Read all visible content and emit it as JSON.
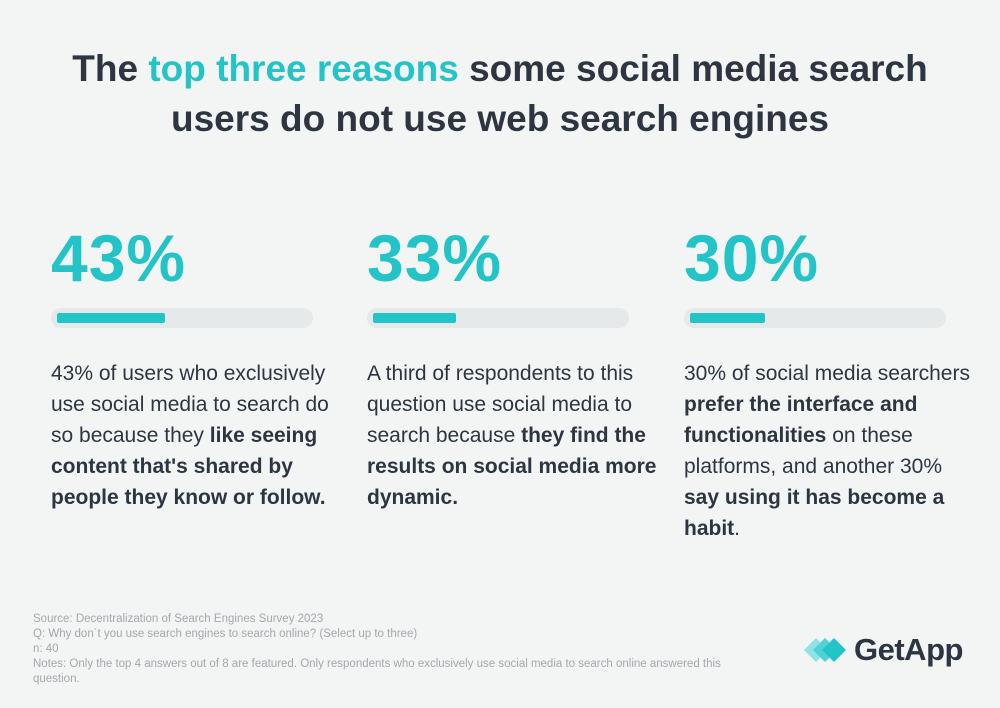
{
  "title": [
    {
      "text": "The ",
      "highlight": false
    },
    {
      "text": "top three reasons",
      "highlight": true
    },
    {
      "text": " some social media search users do not use web search engines",
      "highlight": false
    }
  ],
  "stats": [
    {
      "value": 43,
      "label": "43%",
      "text": [
        {
          "text": "43% of users who exclusively use social media to search do so because they ",
          "bold": false
        },
        {
          "text": "like seeing content that's shared by people they know or follow.",
          "bold": true
        }
      ]
    },
    {
      "value": 33,
      "label": "33%",
      "text": [
        {
          "text": "A third of respondents to this question use social media to search because ",
          "bold": false
        },
        {
          "text": "they find the results on social media more dynamic.",
          "bold": true
        }
      ]
    },
    {
      "value": 30,
      "label": "30%",
      "text": [
        {
          "text": "30% of social media searchers ",
          "bold": false
        },
        {
          "text": "prefer the interface and functionalities",
          "bold": true
        },
        {
          "text": " on these platforms, and another 30% ",
          "bold": false
        },
        {
          "text": "say using it has become a habit",
          "bold": true
        },
        {
          "text": ".",
          "bold": false
        }
      ]
    }
  ],
  "notes": [
    "Source: Decentralization of Search Engines Survey 2023",
    "Q: Why don´t you use search engines to search online? (Select up to three)",
    "n: 40",
    "Notes: Only the top 4 answers out of 8 are featured. Only respondents who exclusively use social media to search online answered this question."
  ],
  "logo": "GetApp"
}
